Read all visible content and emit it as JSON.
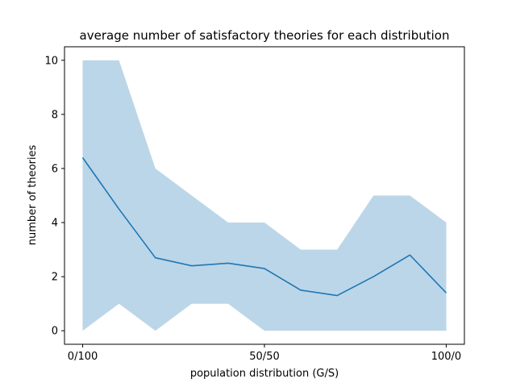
{
  "chart_data": {
    "type": "line",
    "title": "average number of satisfactory theories for each distribution",
    "xlabel": "population distribution (G/S)",
    "ylabel": "number of theories",
    "x": [
      0,
      10,
      20,
      30,
      40,
      50,
      60,
      70,
      80,
      90,
      100
    ],
    "xlim": [
      -5,
      105
    ],
    "ylim": [
      -0.5,
      10.5
    ],
    "xticks": [
      {
        "value": 0,
        "label": "0/100"
      },
      {
        "value": 50,
        "label": "50/50"
      },
      {
        "value": 100,
        "label": "100/0"
      }
    ],
    "yticks": [
      {
        "value": 0,
        "label": "0"
      },
      {
        "value": 2,
        "label": "2"
      },
      {
        "value": 4,
        "label": "4"
      },
      {
        "value": 6,
        "label": "6"
      },
      {
        "value": 8,
        "label": "8"
      },
      {
        "value": 10,
        "label": "10"
      }
    ],
    "grid": false,
    "series": [
      {
        "values": [
          6.4,
          4.5,
          2.7,
          2.4,
          2.5,
          2.3,
          1.5,
          1.3,
          2.0,
          2.8,
          1.4
        ],
        "band_lower": [
          0,
          1,
          0,
          1,
          1,
          0,
          0,
          0,
          0,
          0,
          0
        ],
        "band_upper": [
          10,
          10,
          6,
          5,
          4,
          4,
          3,
          3,
          5,
          5,
          4
        ],
        "color": "#1f77b4",
        "band_color": "#1f77b4"
      }
    ]
  }
}
